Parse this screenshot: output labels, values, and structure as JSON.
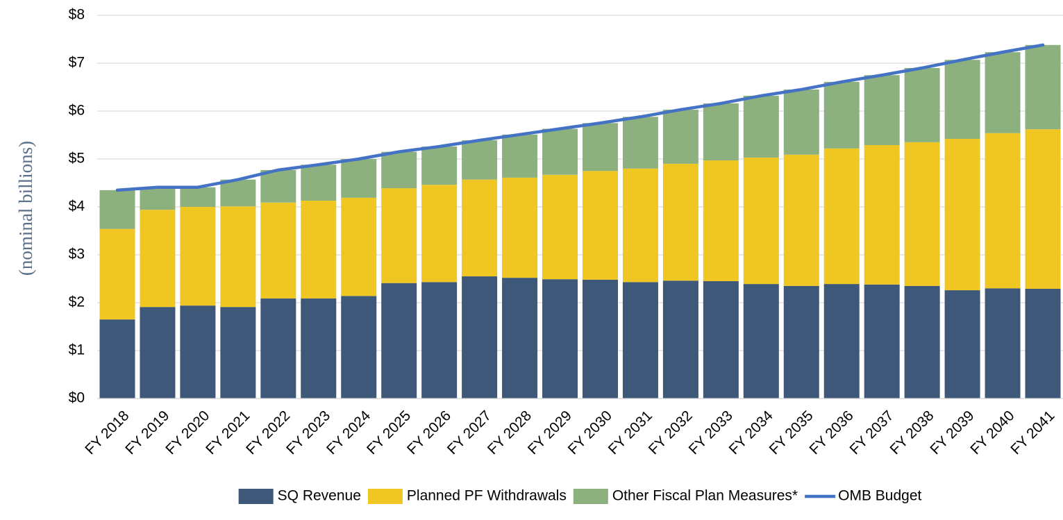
{
  "chart_data": {
    "type": "stacked_bar_line",
    "y_label": "(nominal billions)",
    "categories": [
      "FY 2018",
      "FY 2019",
      "FY 2020",
      "FY 2021",
      "FY 2022",
      "FY 2023",
      "FY 2024",
      "FY 2025",
      "FY 2026",
      "FY 2027",
      "FY 2028",
      "FY 2029",
      "FY 2030",
      "FY 2031",
      "FY 2032",
      "FY 2033",
      "FY 2034",
      "FY 2035",
      "FY 2036",
      "FY 2037",
      "FY 2038",
      "FY 2039",
      "FY 2040",
      "FY 2041"
    ],
    "series": [
      {
        "name": "SQ Revenue",
        "color": "#3e5879",
        "type": "bar",
        "values": [
          1.65,
          1.91,
          1.94,
          1.91,
          2.09,
          2.09,
          2.14,
          2.41,
          2.43,
          2.55,
          2.52,
          2.49,
          2.48,
          2.43,
          2.46,
          2.45,
          2.39,
          2.35,
          2.39,
          2.38,
          2.35,
          2.26,
          2.3,
          2.29
        ]
      },
      {
        "name": "Planned PF Withdrawals",
        "color": "#f0c622",
        "type": "bar",
        "values": [
          1.89,
          2.03,
          2.06,
          2.1,
          2.0,
          2.04,
          2.05,
          1.98,
          2.03,
          2.02,
          2.09,
          2.18,
          2.27,
          2.37,
          2.44,
          2.52,
          2.64,
          2.74,
          2.83,
          2.91,
          3.0,
          3.16,
          3.24,
          3.33
        ]
      },
      {
        "name": "Other Fiscal Plan Measures*",
        "color": "#8db17e",
        "type": "bar",
        "values": [
          0.81,
          0.47,
          0.41,
          0.56,
          0.68,
          0.75,
          0.81,
          0.76,
          0.8,
          0.82,
          0.9,
          0.96,
          1.0,
          1.08,
          1.13,
          1.19,
          1.29,
          1.36,
          1.39,
          1.46,
          1.55,
          1.65,
          1.69,
          1.76
        ]
      },
      {
        "name": "OMB Budget",
        "color": "#4472c4",
        "type": "line",
        "values": [
          4.35,
          4.41,
          4.41,
          4.57,
          4.77,
          4.88,
          5.0,
          5.15,
          5.26,
          5.39,
          5.51,
          5.63,
          5.75,
          5.88,
          6.03,
          6.16,
          6.32,
          6.45,
          6.61,
          6.75,
          6.9,
          7.07,
          7.23,
          7.38
        ]
      }
    ],
    "ylim": [
      0,
      8
    ],
    "yticks": [
      {
        "value": 0,
        "label": "$0"
      },
      {
        "value": 1,
        "label": "$1"
      },
      {
        "value": 2,
        "label": "$2"
      },
      {
        "value": 3,
        "label": "$3"
      },
      {
        "value": 4,
        "label": "$4"
      },
      {
        "value": 5,
        "label": "$5"
      },
      {
        "value": 6,
        "label": "$6"
      },
      {
        "value": 7,
        "label": "$7"
      },
      {
        "value": 8,
        "label": "$8"
      }
    ],
    "grid": true,
    "legend": "bottom"
  }
}
